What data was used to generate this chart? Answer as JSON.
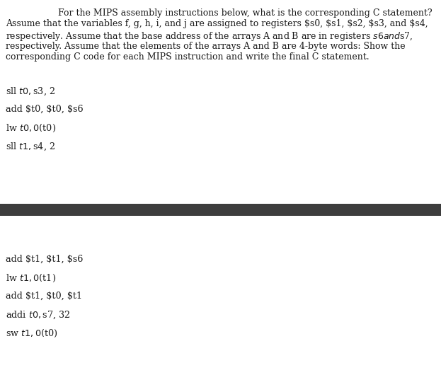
{
  "bg_color": "#ffffff",
  "divider_color": "#3d3d3d",
  "header_line1": "For the MIPS assembly instructions below, what is the corresponding C statement?",
  "header_line2": "Assume that the variables f, g, h, i, and j are assigned to registers $s0, $s1, $s2, $s3, and $s4,",
  "header_line3": "respectively. Assume that the base address of the arrays A and B are in registers $s6 and $s7,",
  "header_line4": "respectively. Assume that the elements of the arrays A and B are 4-byte words: Show the",
  "header_line5": "corresponding C code for each MIPS instruction and write the final C statement.",
  "top_instructions": [
    "sll $t0, $s3, 2",
    "add $t0, $t0, $s6",
    "lw $t0, 0($t0)",
    "sll $t1, $s4, 2"
  ],
  "bottom_instructions": [
    "add $t1, $t1, $s6",
    "lw $t1, 0($t1)",
    "add $t1, $t0, $t1",
    "addi $t0, $s7, 32",
    "sw $t1, 0($t0)"
  ],
  "text_color": "#1a1a1a",
  "header_fontsize": 9.0,
  "instruction_fontsize": 9.2
}
